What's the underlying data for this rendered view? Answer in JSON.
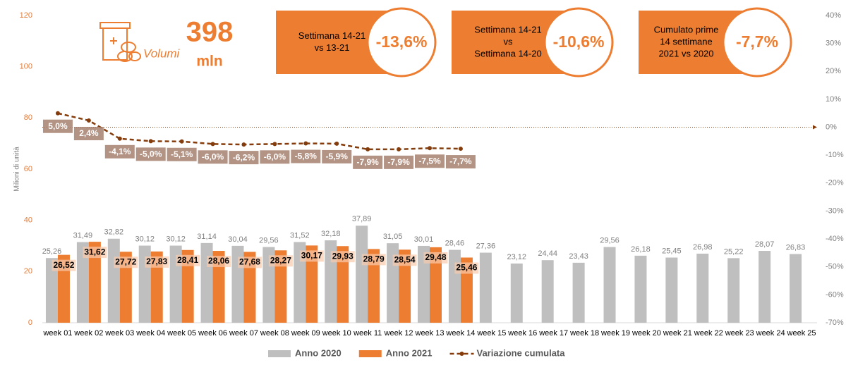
{
  "chart_data": {
    "type": "bar_line",
    "y_label": "Milioni di unità",
    "categories": [
      "week 01",
      "week 02",
      "week 03",
      "week 04",
      "week 05",
      "week 06",
      "week 07",
      "week 08",
      "week 09",
      "week 10",
      "week 11",
      "week 12",
      "week 13",
      "week 14",
      "week 15",
      "week 16",
      "week 17",
      "week 18",
      "week 19",
      "week 20",
      "week 21",
      "week 22",
      "week 23",
      "week 24",
      "week 25"
    ],
    "series": [
      {
        "name": "Anno 2020",
        "color": "#bfbfbf",
        "type": "bar",
        "values": [
          25.26,
          31.49,
          32.82,
          30.12,
          30.12,
          31.14,
          30.04,
          29.56,
          31.52,
          32.18,
          37.89,
          31.05,
          30.01,
          28.46,
          27.36,
          23.12,
          24.44,
          23.43,
          29.56,
          26.18,
          25.45,
          26.98,
          25.22,
          28.07,
          26.83
        ],
        "value_labels": [
          "25,26",
          "31,49",
          "32,82",
          "30,12",
          "30,12",
          "31,14",
          "30,04",
          "29,56",
          "31,52",
          "32,18",
          "37,89",
          "31,05",
          "30,01",
          "28,46",
          "27,36",
          "23,12",
          "24,44",
          "23,43",
          "29,56",
          "26,18",
          "25,45",
          "26,98",
          "25,22",
          "28,07",
          "26,83"
        ]
      },
      {
        "name": "Anno 2021",
        "color": "#ed7d31",
        "type": "bar",
        "values": [
          26.52,
          31.62,
          27.72,
          27.83,
          28.41,
          28.06,
          27.68,
          28.27,
          30.17,
          29.93,
          28.79,
          28.54,
          29.48,
          25.46,
          null,
          null,
          null,
          null,
          null,
          null,
          null,
          null,
          null,
          null,
          null
        ],
        "value_labels": [
          "26,52",
          "31,62",
          "27,72",
          "27,83",
          "28,41",
          "28,06",
          "27,68",
          "28,27",
          "30,17",
          "29,93",
          "28,79",
          "28,54",
          "29,48",
          "25,46",
          null,
          null,
          null,
          null,
          null,
          null,
          null,
          null,
          null,
          null,
          null
        ]
      },
      {
        "name": "Variazione cumulata",
        "color": "#843c0c",
        "type": "line",
        "axis": "y2",
        "values": [
          5.0,
          2.4,
          -4.1,
          -5.0,
          -5.1,
          -6.0,
          -6.2,
          -6.0,
          -5.8,
          -5.9,
          -7.9,
          -7.9,
          -7.5,
          -7.7,
          null,
          null,
          null,
          null,
          null,
          null,
          null,
          null,
          null,
          null,
          null
        ],
        "value_labels": [
          "5,0%",
          "2,4%",
          "-4,1%",
          "-5,0%",
          "-5,1%",
          "-6,0%",
          "-6,2%",
          "-6,0%",
          "-5,8%",
          "-5,9%",
          "-7,9%",
          "-7,9%",
          "-7,5%",
          "-7,7%",
          null,
          null,
          null,
          null,
          null,
          null,
          null,
          null,
          null,
          null,
          null
        ]
      }
    ],
    "ylim": [
      0,
      120
    ],
    "yticks": [
      0,
      20,
      40,
      60,
      80,
      100,
      120
    ],
    "y2lim": [
      -70,
      40
    ],
    "y2ticks": [
      {
        "value": -70,
        "label": "-70%"
      },
      {
        "value": -60,
        "label": "-60%"
      },
      {
        "value": -50,
        "label": "-50%"
      },
      {
        "value": -40,
        "label": "-40%"
      },
      {
        "value": -30,
        "label": "-30%"
      },
      {
        "value": -20,
        "label": "-20%"
      },
      {
        "value": -10,
        "label": "-10%"
      },
      {
        "value": 0,
        "label": "0%"
      },
      {
        "value": 10,
        "label": "10%"
      },
      {
        "value": 20,
        "label": "20%"
      },
      {
        "value": 30,
        "label": "30%"
      },
      {
        "value": 40,
        "label": "40%"
      }
    ],
    "grid": false,
    "legend": "bottom"
  },
  "volume": {
    "label": "Volumi",
    "value": "398",
    "unit": "mln"
  },
  "panels": [
    {
      "lines": [
        "Settimana 14-21",
        "vs 13-21"
      ],
      "value": "-13,6%"
    },
    {
      "lines": [
        "Settimana 14-21",
        "vs",
        "Settimana 14-20"
      ],
      "value": "-10,6%"
    },
    {
      "lines": [
        "Cumulato prime",
        "14 settimane",
        "2021 vs 2020"
      ],
      "value": "-7,7%"
    }
  ]
}
